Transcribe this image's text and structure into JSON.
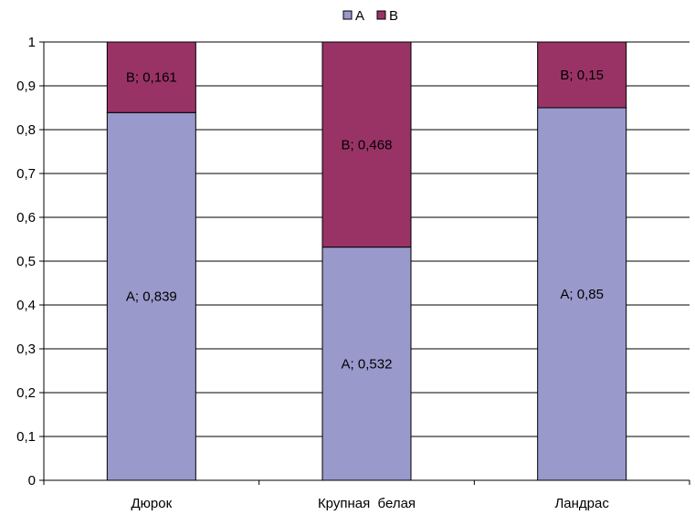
{
  "chart_data": {
    "type": "bar",
    "stacked": true,
    "categories": [
      "Дюрок",
      "Крупная  белая",
      "Ландрас"
    ],
    "series": [
      {
        "name": "A",
        "values": [
          0.839,
          0.532,
          0.85
        ],
        "color": "#9999cc"
      },
      {
        "name": "B",
        "values": [
          0.161,
          0.468,
          0.15
        ],
        "color": "#993366"
      }
    ],
    "data_labels": [
      [
        "A; 0,839",
        "A; 0,532",
        "A; 0,85"
      ],
      [
        "B; 0,161",
        "B; 0,468",
        "B; 0,15"
      ]
    ],
    "ylim": [
      0,
      1
    ],
    "yticks": [
      "0",
      "0,1",
      "0,2",
      "0,3",
      "0,4",
      "0,5",
      "0,6",
      "0,7",
      "0,8",
      "0,9",
      "1"
    ],
    "grid": true,
    "legend": {
      "position": "top",
      "entries": [
        "A",
        "B"
      ]
    },
    "title": "",
    "xlabel": "",
    "ylabel": ""
  }
}
